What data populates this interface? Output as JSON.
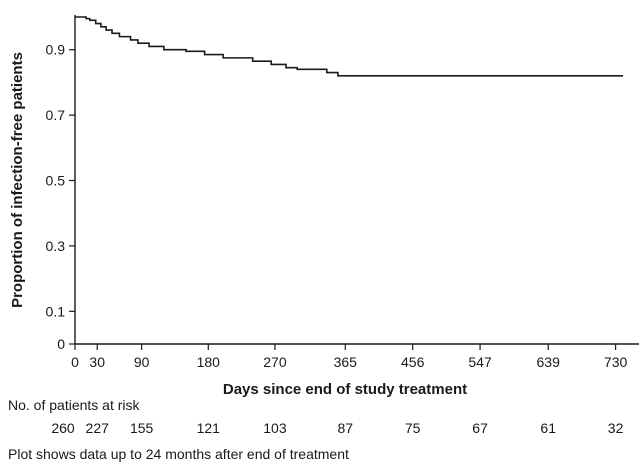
{
  "chart_data": {
    "type": "line",
    "title": "",
    "xlabel": "Days since end of study treatment",
    "ylabel": "Proportion of infection-free patients",
    "xlim": [
      0,
      740
    ],
    "ylim": [
      0,
      1.0
    ],
    "x_ticks": [
      0,
      30,
      90,
      180,
      270,
      365,
      456,
      547,
      639,
      730
    ],
    "y_ticks": [
      0,
      0.1,
      0.3,
      0.5,
      0.7,
      0.9
    ],
    "grid": false,
    "series": [
      {
        "step": true,
        "x": [
          0,
          15,
          20,
          28,
          35,
          42,
          50,
          60,
          75,
          85,
          100,
          120,
          150,
          175,
          200,
          240,
          265,
          285,
          300,
          340,
          355,
          740
        ],
        "y": [
          1.0,
          0.995,
          0.99,
          0.98,
          0.97,
          0.96,
          0.95,
          0.94,
          0.93,
          0.92,
          0.91,
          0.9,
          0.895,
          0.885,
          0.875,
          0.865,
          0.855,
          0.845,
          0.84,
          0.83,
          0.82,
          0.82
        ]
      }
    ],
    "risk_table": {
      "label": "No. of patients at risk",
      "days": [
        0,
        30,
        90,
        180,
        270,
        365,
        456,
        547,
        639,
        730
      ],
      "counts": [
        "260",
        "227",
        "155",
        "121",
        "103",
        "87",
        "75",
        "67",
        "61",
        "32"
      ]
    },
    "footnote": "Plot shows data up to 24 months after end of treatment"
  }
}
